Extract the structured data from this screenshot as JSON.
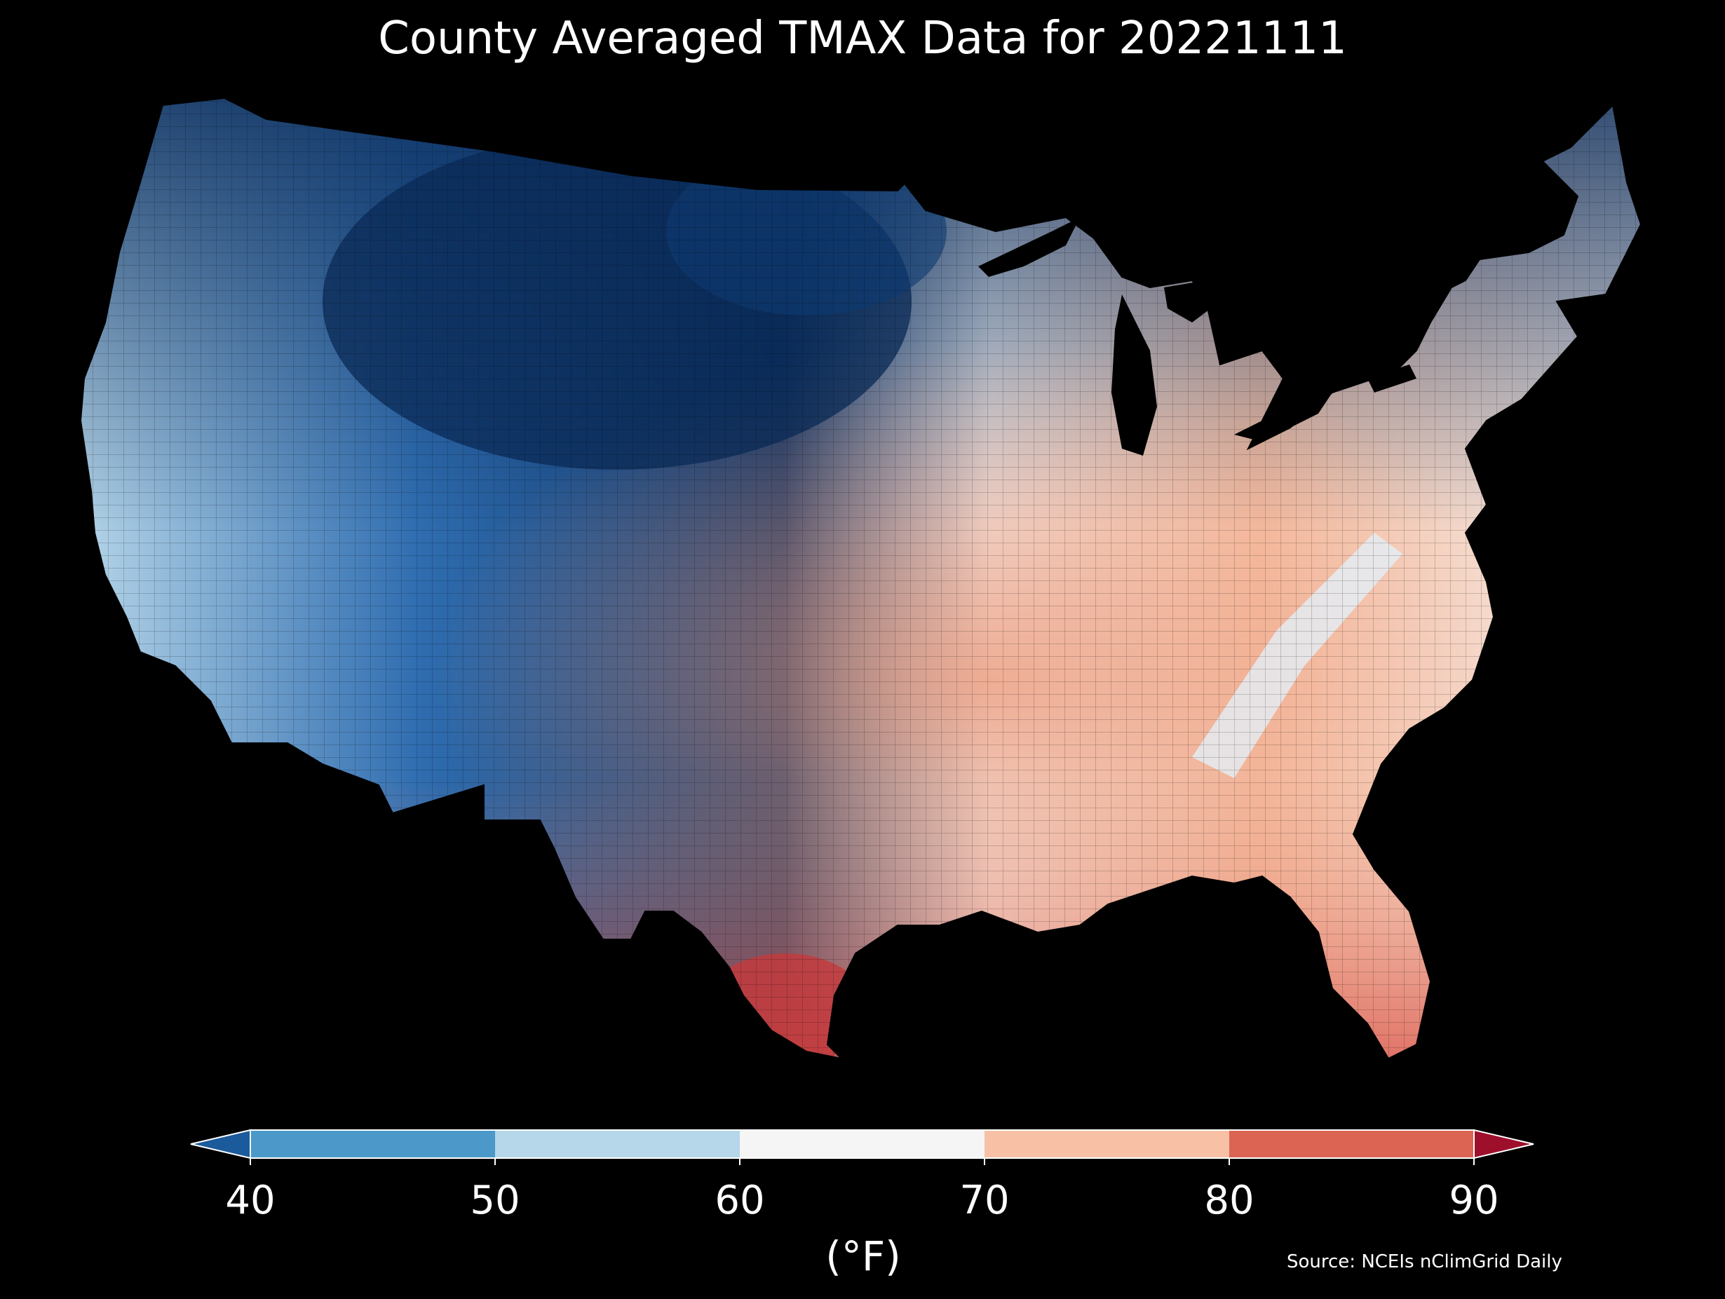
{
  "title": "County Averaged TMAX Data for 20221111",
  "source": "Source: NCEIs nClimGrid Daily",
  "colorbar": {
    "unit_label": "(°F)",
    "ticks": [
      "40",
      "50",
      "60",
      "70",
      "80",
      "90"
    ],
    "bins": [
      {
        "range": "<40",
        "color": "#1b5a9b"
      },
      {
        "range": "40-50",
        "color": "#4b98c9"
      },
      {
        "range": "50-60",
        "color": "#b6d6e9"
      },
      {
        "range": "60-70",
        "color": "#f5f5f5"
      },
      {
        "range": "70-80",
        "color": "#f8c1a5"
      },
      {
        "range": "80-90",
        "color": "#dc6453"
      },
      {
        "range": ">90",
        "color": "#9d0f2b"
      }
    ]
  }
}
